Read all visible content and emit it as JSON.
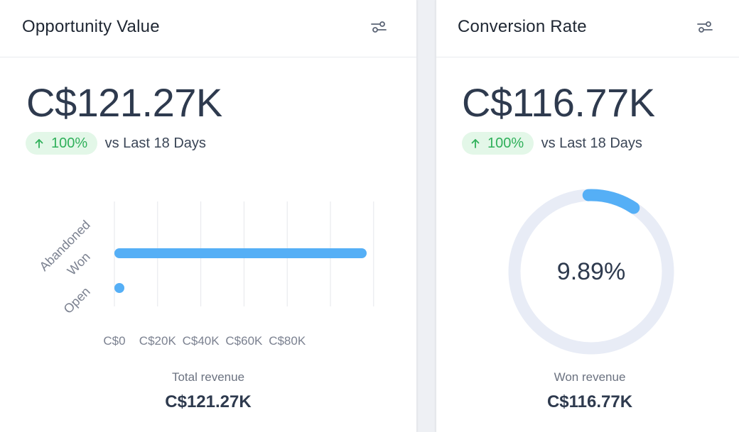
{
  "colors": {
    "accent": "#55aff6",
    "track": "#e8ecf6",
    "positive_bg": "#e3f7e8",
    "positive_text": "#2fb05a",
    "gridline": "#e5e7eb"
  },
  "opportunity_card": {
    "title": "Opportunity Value",
    "settings_icon": "sliders-icon",
    "value": "C$121.27K",
    "change": "100%",
    "change_icon": "arrow-up-icon",
    "change_text": "vs Last 18 Days",
    "footer_label": "Total revenue",
    "footer_value": "C$121.27K"
  },
  "conversion_card": {
    "title": "Conversion Rate",
    "settings_icon": "sliders-icon",
    "value": "C$116.77K",
    "change": "100%",
    "change_icon": "arrow-up-icon",
    "change_text": "vs Last 18 Days",
    "footer_label": "Won revenue",
    "footer_value": "C$116.77K",
    "donut_percent_label": "9.89%",
    "donut_fraction": 0.0989
  },
  "chart_data": [
    {
      "type": "bar",
      "orientation": "horizontal",
      "categories": [
        "Abandoned",
        "Won",
        "Open"
      ],
      "values": [
        0,
        116770,
        1000
      ],
      "x_tick_labels": [
        "C$0",
        "C$20K",
        "C$40K",
        "C$60K",
        "C$80K"
      ],
      "xlim": [
        0,
        120000
      ],
      "grid": true
    }
  ]
}
